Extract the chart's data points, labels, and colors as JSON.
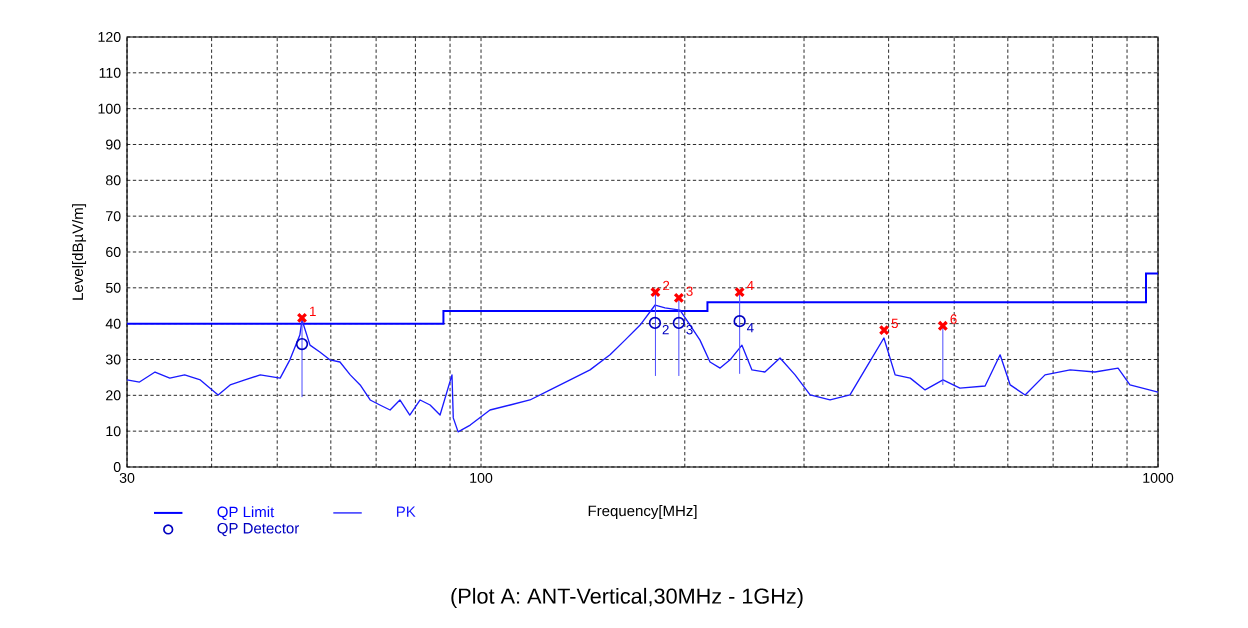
{
  "chart_data": {
    "type": "line",
    "xlabel": "Frequency[MHz]",
    "ylabel": "Level[dBµV/m]",
    "log": "x",
    "xlim": [
      30,
      1000
    ],
    "ylim": [
      0,
      120
    ],
    "xticks": [
      30,
      {
        "value": 40,
        "label": null
      },
      {
        "value": 50,
        "label": null
      },
      {
        "value": 60,
        "label": null
      },
      {
        "value": 70,
        "label": null
      },
      {
        "value": 80,
        "label": null
      },
      {
        "value": 90,
        "label": null
      },
      100,
      {
        "value": 200,
        "label": null
      },
      {
        "value": 300,
        "label": null
      },
      {
        "value": 400,
        "label": null
      },
      {
        "value": 500,
        "label": null
      },
      {
        "value": 600,
        "label": null
      },
      {
        "value": 700,
        "label": null
      },
      {
        "value": 800,
        "label": null
      },
      {
        "value": 900,
        "label": null
      },
      1000
    ],
    "yticks": [
      0,
      10,
      20,
      30,
      40,
      50,
      60,
      70,
      80,
      90,
      100,
      110,
      120
    ],
    "grid": true,
    "legend": "bottom",
    "annotations": [
      "(Plot A: ANT-Vertical,30MHz - 1GHz)",
      {
        "text": "1",
        "x": 54.4,
        "y": 41.6
      },
      {
        "text": "2",
        "x": 181,
        "y": 48.8
      },
      {
        "text": "3",
        "x": 196,
        "y": 47.2
      },
      {
        "text": "4",
        "x": 241,
        "y": 48.8
      },
      {
        "text": "5",
        "x": 394,
        "y": 38.2
      },
      {
        "text": "6",
        "x": 481,
        "y": 39.4
      },
      {
        "text": "2",
        "x": 180.7,
        "y": 40.2
      },
      {
        "text": "3",
        "x": 196,
        "y": 40.2
      },
      {
        "text": "4",
        "x": 241,
        "y": 40.7
      }
    ],
    "series": [
      {
        "name": "QP Limit",
        "type": "step",
        "color": "#0000ff",
        "x": [
          30,
          88,
          216,
          960,
          1000
        ],
        "values": [
          40,
          43.5,
          46,
          54,
          54
        ]
      },
      {
        "name": "PK",
        "color": "#1a1aff",
        "x": [
          30,
          31.3,
          33.0,
          34.7,
          36.5,
          38.5,
          39.8,
          40.9,
          42.6,
          44.8,
          47.2,
          50.5,
          52.2,
          54.0,
          54.4,
          55.9,
          57.8,
          59.8,
          61.9,
          64.1,
          66.3,
          68.6,
          70.9,
          73.4,
          75.9,
          78.5,
          81.3,
          84.1,
          87.0,
          90.6,
          91.0,
          92.5,
          96.4,
          103.1,
          110.4,
          118.1,
          126.5,
          135.4,
          144.9,
          155.1,
          163.2,
          171.8,
          180.8,
          187,
          196.8,
          203.6,
          210.6,
          217.9,
          225.5,
          233.3,
          242.9,
          251.3,
          262.6,
          276.5,
          291,
          306.3,
          327.8,
          350.8,
          369,
          393.7,
          409,
          430.6,
          452.8,
          481.3,
          509.8,
          555.4,
          584.5,
          604.9,
          636.4,
          681,
          741.7,
          807,
          873,
          909,
          1000
        ],
        "values": [
          24.3,
          23.7,
          26.5,
          24.8,
          25.7,
          24.3,
          22,
          20.1,
          22.9,
          24.3,
          25.7,
          24.8,
          29.9,
          36.8,
          41,
          34,
          32.1,
          29.9,
          29.3,
          25.7,
          22.9,
          18.7,
          17.3,
          15.9,
          18.7,
          14.5,
          18.7,
          17.3,
          14.5,
          25.7,
          13.7,
          9.8,
          11.7,
          15.9,
          17.3,
          18.7,
          21.5,
          24.3,
          27.1,
          31.3,
          35.4,
          39.6,
          45.2,
          44.4,
          43.8,
          39.6,
          35.4,
          29.3,
          27.6,
          29.9,
          34,
          27.1,
          26.5,
          30.4,
          25.7,
          20.1,
          18.7,
          20.1,
          27.1,
          36,
          25.7,
          24.8,
          21.5,
          24.3,
          22,
          22.6,
          31.3,
          22.9,
          20.1,
          25.7,
          27.1,
          26.5,
          27.6,
          22.9,
          20.9
        ]
      },
      {
        "name": "QP Detector",
        "type": "scatter",
        "marker": "circle",
        "color": "#0000c0",
        "x": [
          54.4,
          180.7,
          196,
          241
        ],
        "values": [
          34.3,
          40.2,
          40.2,
          40.7
        ]
      },
      {
        "type": "scatter",
        "marker": "cross",
        "color": "#ff0000",
        "x": [
          54.4,
          181,
          196,
          241,
          394,
          481
        ],
        "values": [
          41.6,
          48.8,
          47.2,
          48.8,
          38.2,
          39.4
        ],
        "errors": [
          [
            19.5,
            41.6
          ],
          [
            25.4,
            48.8
          ],
          [
            25.4,
            47.2
          ],
          [
            26,
            48.8
          ],
          null,
          [
            22.9,
            39.4
          ]
        ]
      }
    ]
  }
}
